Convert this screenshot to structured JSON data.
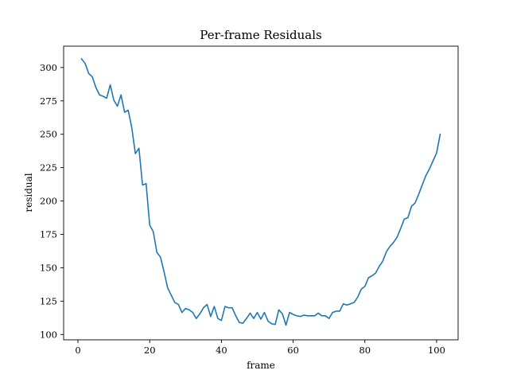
{
  "chart_data": {
    "type": "line",
    "title": "Per-frame Residuals",
    "xlabel": "frame",
    "ylabel": "residual",
    "xlim": [
      -4.0,
      106.0
    ],
    "ylim": [
      96.0,
      316.0
    ],
    "xticks": [
      0,
      20,
      40,
      60,
      80,
      100
    ],
    "yticks": [
      100,
      125,
      150,
      175,
      200,
      225,
      250,
      275,
      300
    ],
    "grid": false,
    "line_color": "#1f77b4",
    "series": [
      {
        "name": "",
        "x": [
          1,
          2,
          3,
          4,
          5,
          6,
          7,
          8,
          9,
          10,
          11,
          12,
          13,
          14,
          15,
          16,
          17,
          18,
          19,
          20,
          21,
          22,
          23,
          24,
          25,
          26,
          27,
          28,
          29,
          30,
          31,
          32,
          33,
          34,
          35,
          36,
          37,
          38,
          39,
          40,
          41,
          42,
          43,
          44,
          45,
          46,
          47,
          48,
          49,
          50,
          51,
          52,
          53,
          54,
          55,
          56,
          57,
          58,
          59,
          60,
          61,
          62,
          63,
          64,
          65,
          66,
          67,
          68,
          69,
          70,
          71,
          72,
          73,
          74,
          75,
          76,
          77,
          78,
          79,
          80,
          81,
          82,
          83,
          84,
          85,
          86,
          87,
          88,
          89,
          90,
          91,
          92,
          93,
          94,
          95,
          96,
          97,
          98,
          99,
          100,
          101
        ],
        "values": [
          306.5,
          303,
          295.5,
          293,
          285,
          279.5,
          278.5,
          277,
          287,
          275.5,
          271,
          279.5,
          266.5,
          268,
          255,
          235.5,
          239.5,
          212,
          213,
          182,
          177,
          161.5,
          158,
          147,
          135,
          129.5,
          124,
          122.5,
          116.5,
          119.5,
          118.5,
          116.5,
          112,
          115.5,
          120,
          122.5,
          113.5,
          121,
          112,
          110.5,
          121,
          120,
          120,
          114,
          109,
          108.5,
          112,
          116,
          112,
          116.5,
          111.5,
          116.5,
          110,
          108,
          107.5,
          118.5,
          115.5,
          107,
          116.5,
          115,
          114,
          113.5,
          114.5,
          114,
          114,
          114,
          116,
          114,
          114,
          112,
          116.5,
          117.5,
          117.5,
          123,
          122,
          123,
          124,
          128,
          134,
          136,
          142.5,
          144,
          146,
          151,
          155,
          162,
          166,
          169,
          173,
          179.5,
          186.5,
          187.5,
          196,
          198.5,
          205,
          212,
          219,
          224,
          230,
          236,
          250
        ]
      }
    ]
  }
}
